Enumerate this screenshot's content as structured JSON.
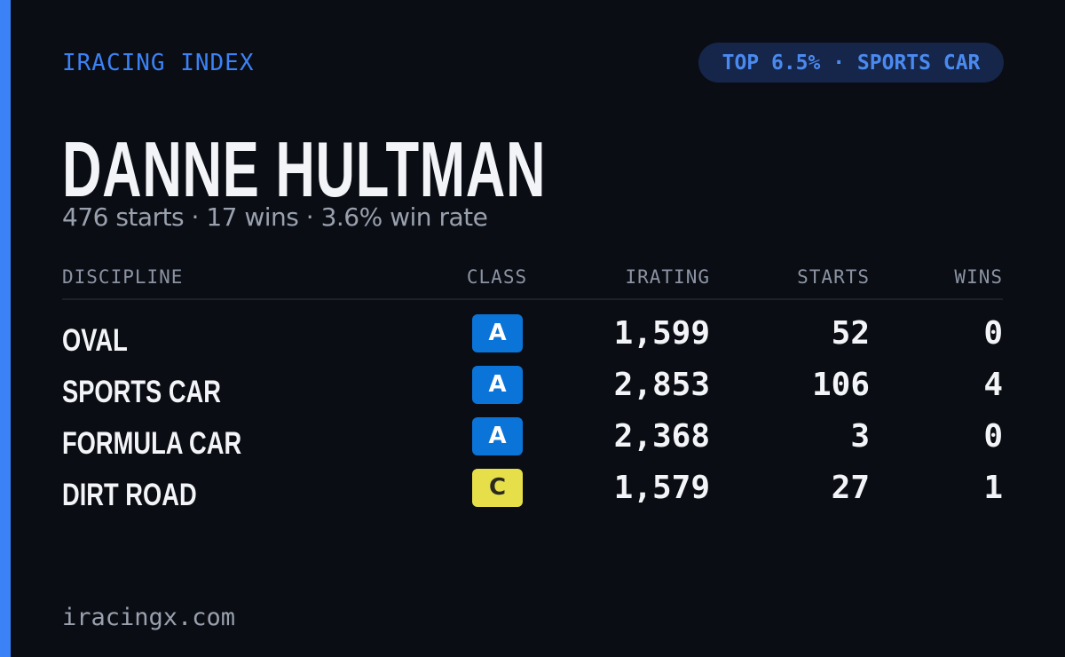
{
  "header": {
    "brand": "IRACING INDEX",
    "badge": "TOP 6.5% · SPORTS CAR"
  },
  "driver": {
    "name": "DANNE HULTMAN",
    "summary": "476 starts · 17 wins · 3.6% win rate"
  },
  "table": {
    "columns": [
      "DISCIPLINE",
      "CLASS",
      "IRATING",
      "STARTS",
      "WINS"
    ],
    "rows": [
      [
        "OVAL",
        "A",
        "1,599",
        52,
        0
      ],
      [
        "SPORTS CAR",
        "A",
        "2,853",
        106,
        4
      ],
      [
        "FORMULA CAR",
        "A",
        "2,368",
        3,
        0
      ],
      [
        "DIRT ROAD",
        "C",
        "1,579",
        27,
        1
      ]
    ]
  },
  "footer": {
    "site": "iracingx.com"
  }
}
